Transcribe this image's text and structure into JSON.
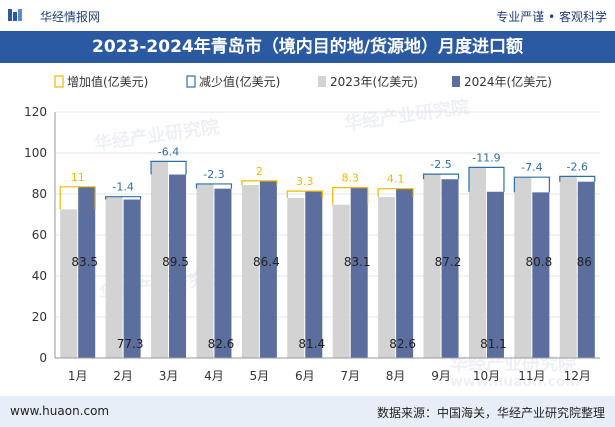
{
  "header": {
    "site_name": "华经情报网",
    "tagline": "专业严谨 • 客观科学"
  },
  "title": "2023-2024年青岛市（境内目的地/货源地）月度进口额",
  "watermarks": [
    "华经产业研究院",
    "www.huaon.com"
  ],
  "footer": {
    "website": "www.huaon.com",
    "source": "数据来源：中国海关，华经产业研究院整理"
  },
  "colors": {
    "title_band": "#2b5aa3",
    "series_2023": "#d3d3d3",
    "series_2024": "#5b6e9e",
    "increase": "#f0b800",
    "decrease": "#2e6fa8"
  },
  "chart_data": {
    "type": "bar",
    "categories": [
      "1月",
      "2月",
      "3月",
      "4月",
      "5月",
      "6月",
      "7月",
      "8月",
      "9月",
      "10月",
      "11月",
      "12月"
    ],
    "legend": [
      "增加值(亿美元)",
      "减少值(亿美元)",
      "2023年(亿美元)",
      "2024年(亿美元)"
    ],
    "series": [
      {
        "name": "2023年(亿美元)",
        "values": [
          72.5,
          78.7,
          95.9,
          84.9,
          84.4,
          78.1,
          74.8,
          78.5,
          89.7,
          93.0,
          88.2,
          88.6
        ]
      },
      {
        "name": "2024年(亿美元)",
        "values": [
          83.5,
          77.3,
          89.5,
          82.6,
          86.4,
          81.4,
          83.1,
          82.6,
          87.2,
          81.1,
          80.8,
          86.0
        ]
      }
    ],
    "value_labels_2024": [
      "83.5",
      "77.3",
      "89.5",
      "82.6",
      "86.4",
      "81.4",
      "83.1",
      "82.6",
      "87.2",
      "81.1",
      "80.8",
      "86"
    ],
    "change_values": [
      11,
      -1.4,
      -6.4,
      -2.3,
      2,
      3.3,
      8.3,
      4.1,
      -2.5,
      -11.9,
      -7.4,
      -2.6
    ],
    "change_labels": [
      "11",
      "-1.4",
      "-6.4",
      "-2.3",
      "2",
      "3.3",
      "8.3",
      "4.1",
      "-2.5",
      "-11.9",
      "-7.4",
      "-2.6"
    ],
    "yticks": [
      "0",
      "20",
      "40",
      "60",
      "80",
      "100",
      "120"
    ],
    "ylim": [
      0,
      120
    ],
    "grid": true,
    "legend_position": "top"
  }
}
